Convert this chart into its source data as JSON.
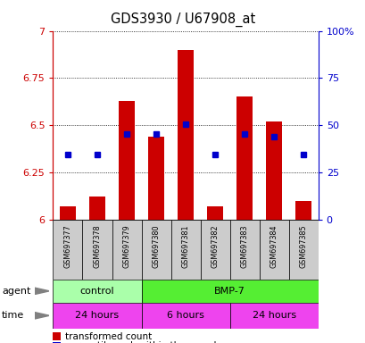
{
  "title": "GDS3930 / U67908_at",
  "samples": [
    "GSM697377",
    "GSM697378",
    "GSM697379",
    "GSM697380",
    "GSM697381",
    "GSM697382",
    "GSM697383",
    "GSM697384",
    "GSM697385"
  ],
  "red_values": [
    6.07,
    6.12,
    6.63,
    6.44,
    6.9,
    6.07,
    6.65,
    6.52,
    6.1
  ],
  "blue_values": [
    6.345,
    6.345,
    6.455,
    6.455,
    6.505,
    6.345,
    6.455,
    6.44,
    6.345
  ],
  "ylim": [
    6.0,
    7.0
  ],
  "yticks_left": [
    6.0,
    6.25,
    6.5,
    6.75,
    7.0
  ],
  "ytick_labels_left": [
    "6",
    "6.25",
    "6.5",
    "6.75",
    "7"
  ],
  "yticks_right": [
    0,
    25,
    50,
    75,
    100
  ],
  "ytick_labels_right": [
    "0",
    "25",
    "50",
    "75",
    "100%"
  ],
  "bar_color": "#cc0000",
  "dot_color": "#0000cc",
  "left_axis_color": "#cc0000",
  "right_axis_color": "#0000cc",
  "agent_groups": [
    {
      "label": "control",
      "start": 0,
      "end": 2,
      "color": "#aaffaa"
    },
    {
      "label": "BMP-7",
      "start": 3,
      "end": 8,
      "color": "#55ee33"
    }
  ],
  "time_groups": [
    {
      "label": "24 hours",
      "start": 0,
      "end": 2
    },
    {
      "label": "6 hours",
      "start": 3,
      "end": 5
    },
    {
      "label": "24 hours",
      "start": 6,
      "end": 8
    }
  ],
  "time_color": "#ee44ee",
  "sample_box_color": "#cccccc",
  "bar_width": 0.55,
  "base_value": 6.0,
  "n_samples": 9
}
